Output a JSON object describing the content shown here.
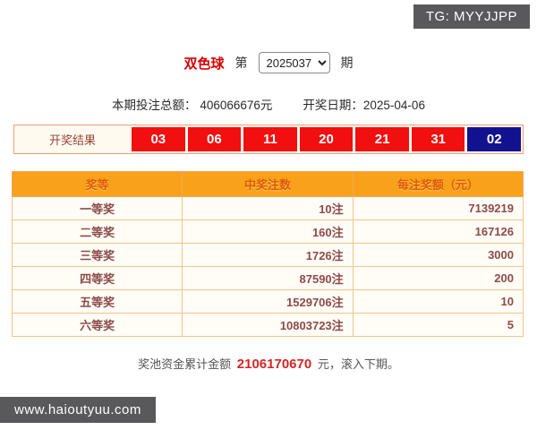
{
  "badges": {
    "tg": "TG: MYYJJPP",
    "site": "www.haioutyuu.com"
  },
  "header": {
    "lottery_name": "双色球",
    "issue_prefix": "第",
    "issue_value": "2025037",
    "issue_suffix": "期"
  },
  "info": {
    "bet_total_label": "本期投注总额：",
    "bet_total_value": "406066676元",
    "draw_date_label": "开奖日期：",
    "draw_date_value": "2025-04-06"
  },
  "result": {
    "label": "开奖结果",
    "red_balls": [
      "03",
      "06",
      "11",
      "20",
      "21",
      "31"
    ],
    "blue_ball": "02"
  },
  "table": {
    "headers": [
      "奖等",
      "中奖注数",
      "每注奖额（元）"
    ],
    "rows": [
      {
        "level": "一等奖",
        "count": "10注",
        "prize": "7139219"
      },
      {
        "level": "二等奖",
        "count": "160注",
        "prize": "167126"
      },
      {
        "level": "三等奖",
        "count": "1726注",
        "prize": "3000"
      },
      {
        "level": "四等奖",
        "count": "87590注",
        "prize": "200"
      },
      {
        "level": "五等奖",
        "count": "1529706注",
        "prize": "10"
      },
      {
        "level": "六等奖",
        "count": "10803723注",
        "prize": "5"
      }
    ]
  },
  "footer": {
    "pool_label": "奖池资金累计金额",
    "pool_value": "2106170670",
    "pool_suffix": "元，滚入下期。"
  },
  "colors": {
    "red_ball": "#f10f0f",
    "blue_ball": "#121290",
    "header_orange": "#f9a11b",
    "maroon_text": "#8d4a4a",
    "badge_gray": "#59595b",
    "pool_red": "#d42626"
  }
}
